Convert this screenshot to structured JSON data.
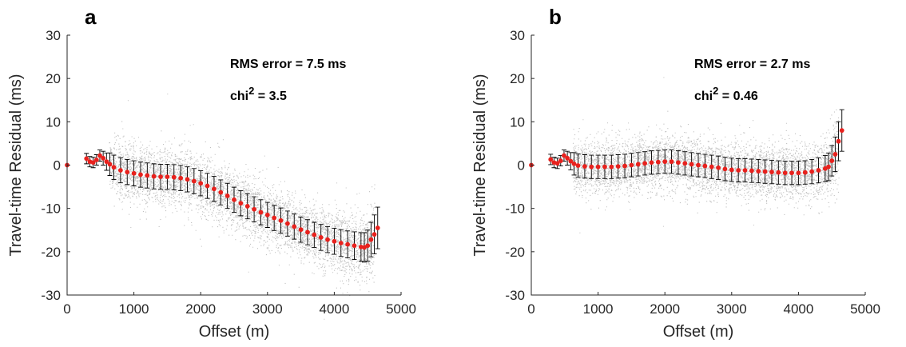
{
  "chart_data": [
    {
      "type": "scatter",
      "panel_label": "a",
      "title": "",
      "xlabel": "Offset  (m)",
      "ylabel": "Travel-time Residual (ms)",
      "xlim": [
        0,
        5000
      ],
      "ylim": [
        -30,
        30
      ],
      "xticks": [
        "0",
        "1000",
        "2000",
        "3000",
        "4000",
        "5000"
      ],
      "yticks": [
        "-30",
        "-20",
        "-10",
        "0",
        "10",
        "20",
        "30"
      ],
      "grid": false,
      "colors": {
        "scatter": "#8c8c8c",
        "mean": "#e8211d",
        "errorbar": "#000000"
      },
      "annotations": {
        "rms": "RMS error = 7.5 ms",
        "chi_base": "chi",
        "chi_sup": "2",
        "chi_value": " = 3.5"
      },
      "mean_curve": {
        "x": [
          0,
          290,
          340,
          390,
          440,
          490,
          540,
          590,
          640,
          700,
          800,
          900,
          1000,
          1100,
          1200,
          1300,
          1400,
          1500,
          1600,
          1700,
          1800,
          1900,
          2000,
          2100,
          2200,
          2300,
          2400,
          2500,
          2600,
          2700,
          2800,
          2900,
          3000,
          3100,
          3200,
          3300,
          3400,
          3500,
          3600,
          3700,
          3800,
          3900,
          4000,
          4100,
          4200,
          4300,
          4400,
          4450,
          4500,
          4550,
          4600,
          4650
        ],
        "y": [
          0,
          1.5,
          0.8,
          0.6,
          1.2,
          2.2,
          1.6,
          0.8,
          0.2,
          -0.5,
          -1.2,
          -1.6,
          -1.9,
          -2.2,
          -2.4,
          -2.6,
          -2.7,
          -2.7,
          -2.8,
          -3.0,
          -3.3,
          -3.7,
          -4.2,
          -4.8,
          -5.5,
          -6.3,
          -7.1,
          -8.0,
          -8.8,
          -9.5,
          -10.2,
          -10.9,
          -11.5,
          -12.2,
          -12.8,
          -13.5,
          -14.2,
          -14.9,
          -15.5,
          -16.1,
          -16.7,
          -17.2,
          -17.6,
          -18.0,
          -18.3,
          -18.6,
          -18.9,
          -19.0,
          -18.6,
          -17.2,
          -16.0,
          -14.5
        ],
        "err": [
          0,
          1.2,
          1.2,
          1.2,
          1.2,
          1.3,
          1.6,
          2.0,
          2.6,
          2.8,
          2.9,
          2.9,
          2.9,
          2.9,
          2.9,
          2.9,
          2.9,
          2.9,
          2.9,
          2.9,
          2.9,
          2.9,
          2.9,
          2.9,
          2.9,
          2.9,
          2.9,
          2.9,
          2.9,
          2.9,
          2.9,
          2.9,
          2.9,
          2.9,
          2.9,
          2.9,
          2.9,
          2.9,
          2.9,
          2.9,
          3.0,
          3.0,
          3.0,
          3.1,
          3.1,
          3.2,
          3.3,
          3.4,
          3.6,
          4.0,
          4.5,
          4.8
        ]
      }
    },
    {
      "type": "scatter",
      "panel_label": "b",
      "title": "",
      "xlabel": "Offset  (m)",
      "ylabel": "Travel-time Residual (ms)",
      "xlim": [
        0,
        5000
      ],
      "ylim": [
        -30,
        30
      ],
      "xticks": [
        "0",
        "1000",
        "2000",
        "3000",
        "4000",
        "5000"
      ],
      "yticks": [
        "-30",
        "-20",
        "-10",
        "0",
        "10",
        "20",
        "30"
      ],
      "grid": false,
      "colors": {
        "scatter": "#8c8c8c",
        "mean": "#e8211d",
        "errorbar": "#000000"
      },
      "annotations": {
        "rms": "RMS error = 2.7 ms",
        "chi_base": "chi",
        "chi_sup": "2",
        "chi_value": " = 0.46"
      },
      "mean_curve": {
        "x": [
          0,
          290,
          340,
          390,
          440,
          490,
          540,
          590,
          640,
          700,
          800,
          900,
          1000,
          1100,
          1200,
          1300,
          1400,
          1500,
          1600,
          1700,
          1800,
          1900,
          2000,
          2100,
          2200,
          2300,
          2400,
          2500,
          2600,
          2700,
          2800,
          2900,
          3000,
          3100,
          3200,
          3300,
          3400,
          3500,
          3600,
          3700,
          3800,
          3900,
          4000,
          4100,
          4200,
          4300,
          4400,
          4450,
          4500,
          4550,
          4600,
          4650
        ],
        "y": [
          0,
          1.3,
          0.6,
          0.4,
          1.0,
          2.2,
          1.6,
          0.9,
          0.3,
          -0.1,
          -0.3,
          -0.4,
          -0.4,
          -0.4,
          -0.4,
          -0.3,
          -0.2,
          0.0,
          0.2,
          0.4,
          0.6,
          0.7,
          0.8,
          0.8,
          0.6,
          0.4,
          0.2,
          0.0,
          -0.2,
          -0.4,
          -0.6,
          -0.9,
          -1.1,
          -1.2,
          -1.2,
          -1.3,
          -1.4,
          -1.5,
          -1.6,
          -1.7,
          -1.8,
          -1.8,
          -1.8,
          -1.7,
          -1.5,
          -1.2,
          -0.8,
          -0.4,
          1.0,
          2.5,
          5.5,
          8.0
        ],
        "err": [
          0,
          1.2,
          1.2,
          1.2,
          1.2,
          1.3,
          1.6,
          2.0,
          2.6,
          2.7,
          2.7,
          2.7,
          2.7,
          2.7,
          2.7,
          2.7,
          2.7,
          2.7,
          2.7,
          2.7,
          2.7,
          2.7,
          2.7,
          2.7,
          2.7,
          2.7,
          2.7,
          2.7,
          2.7,
          2.7,
          2.7,
          2.7,
          2.7,
          2.7,
          2.7,
          2.7,
          2.7,
          2.7,
          2.7,
          2.7,
          2.7,
          2.7,
          2.7,
          2.7,
          2.8,
          2.9,
          3.0,
          3.2,
          3.5,
          4.0,
          4.5,
          4.8
        ]
      }
    }
  ]
}
